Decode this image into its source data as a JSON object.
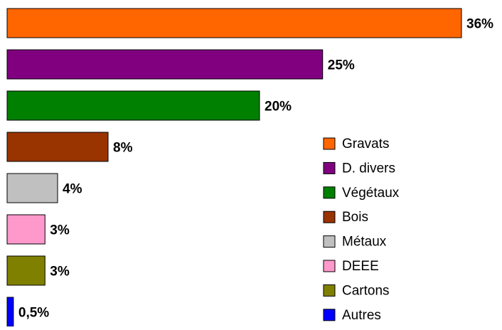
{
  "chart_data": {
    "type": "bar",
    "orientation": "horizontal",
    "categories": [
      "Gravats",
      "D. divers",
      "Végétaux",
      "Bois",
      "Métaux",
      "DEEE",
      "Cartons",
      "Autres"
    ],
    "values": [
      36,
      25,
      20,
      8,
      4,
      3,
      3,
      0.5
    ],
    "value_labels": [
      "36%",
      "25%",
      "20%",
      "8%",
      "4%",
      "3%",
      "3%",
      "0,5%"
    ],
    "colors": [
      "#ff6600",
      "#800080",
      "#008000",
      "#993300",
      "#c0c0c0",
      "#ff99cc",
      "#808000",
      "#0000ff"
    ],
    "legend": "right"
  }
}
